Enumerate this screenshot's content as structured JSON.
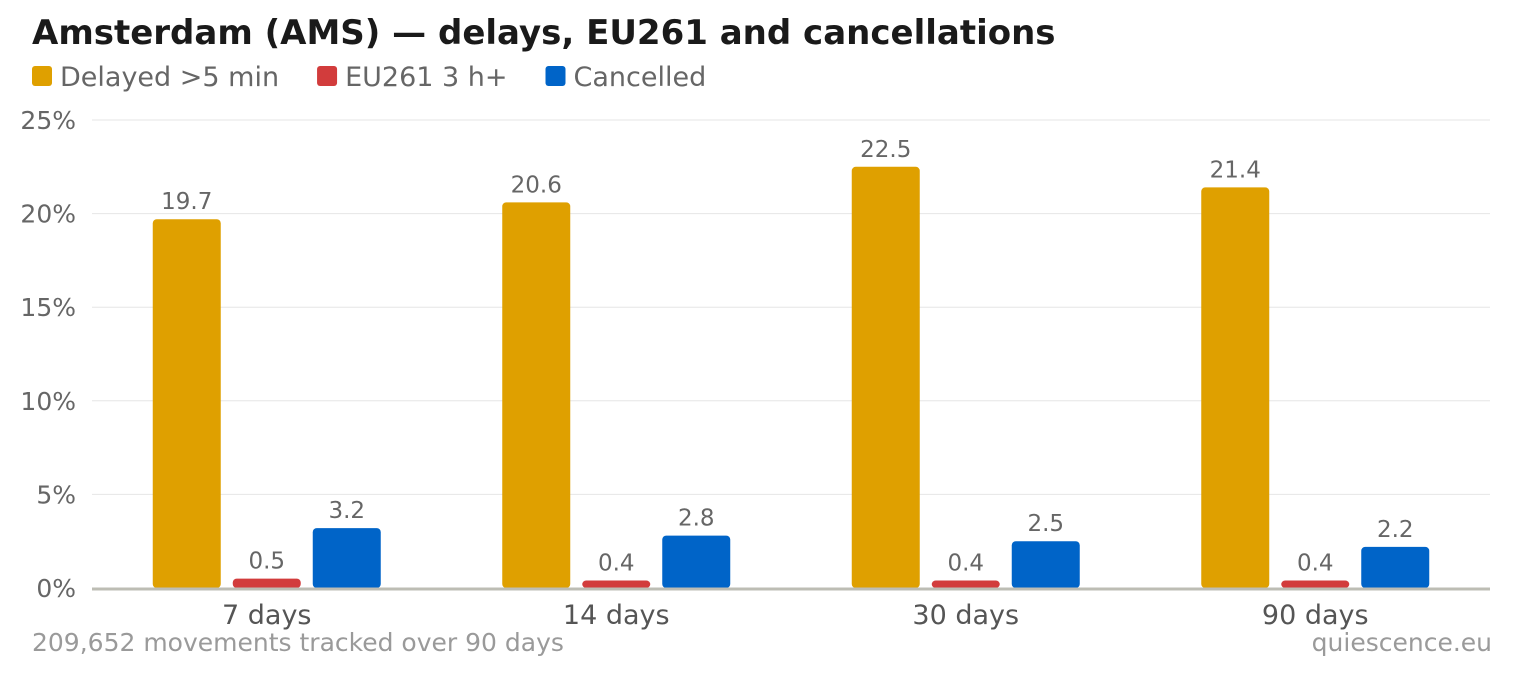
{
  "header": {
    "title": "Amsterdam (AMS) — delays, EU261 and cancellations"
  },
  "footer": {
    "note": "209,652 movements tracked over 90 days",
    "source": "quiescence.eu"
  },
  "chart_data": {
    "type": "bar",
    "title": "Amsterdam (AMS) — delays, EU261 and cancellations",
    "categories": [
      "7 days",
      "14 days",
      "30 days",
      "90 days"
    ],
    "series": [
      {
        "name": "Delayed >5 min",
        "color": "#dfa000",
        "values": [
          19.7,
          20.6,
          22.5,
          21.4
        ]
      },
      {
        "name": "EU261 3 h+",
        "color": "#d23c3c",
        "values": [
          0.5,
          0.4,
          0.4,
          0.4
        ]
      },
      {
        "name": "Cancelled",
        "color": "#0064c8",
        "values": [
          3.2,
          2.8,
          2.5,
          2.2
        ]
      }
    ],
    "ylim": [
      0,
      25
    ],
    "yticks": [
      0,
      5,
      10,
      15,
      20,
      25
    ],
    "ytick_labels": [
      "0%",
      "5%",
      "10%",
      "15%",
      "20%",
      "25%"
    ],
    "legend_position": "top-left",
    "grid": true
  }
}
